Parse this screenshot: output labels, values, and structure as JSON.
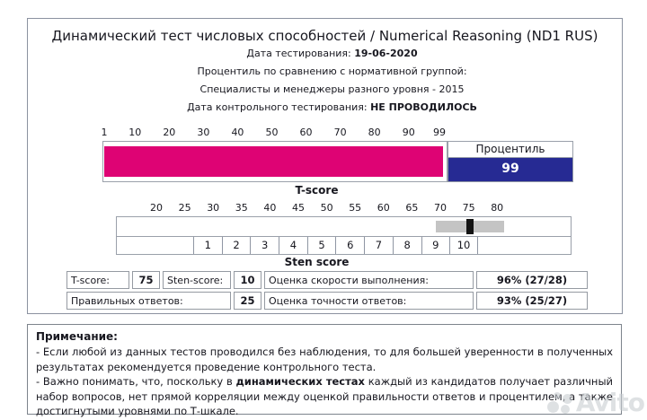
{
  "title": "Динамический тест числовых способностей / Numerical Reasoning (ND1 RUS)",
  "meta": {
    "test_date_label": "Дата тестирования:",
    "test_date": "19-06-2020",
    "percentile_group_label": "Процентиль по сравнению с нормативной группой:",
    "norm_group": "Специалисты и менеджеры разного уровня - 2015",
    "control_date_label": "Дата контрольного тестирования:",
    "control_date": "НЕ ПРОВОДИЛОСЬ"
  },
  "percentile_chart": {
    "ticks": [
      1,
      10,
      20,
      30,
      40,
      50,
      60,
      70,
      80,
      90,
      99
    ],
    "label": "Процентиль",
    "value": 99,
    "bar_color": "#de0374",
    "value_bg_color": "#262a93"
  },
  "tscore_chart": {
    "title": "T-score",
    "ticks": [
      20,
      25,
      30,
      35,
      40,
      45,
      50,
      55,
      60,
      65,
      70,
      75,
      80
    ],
    "value": 75,
    "ci_low": 69,
    "ci_high": 81,
    "band_color": "#c4c4c4",
    "marker_color": "#141414",
    "sten_cells": [
      "1",
      "2",
      "3",
      "4",
      "5",
      "6",
      "7",
      "8",
      "9",
      "10"
    ],
    "sten_label": "Sten score",
    "sten_value": 10
  },
  "results": {
    "tscore_label": "T-score:",
    "tscore_value": "75",
    "sten_label": "Sten-score:",
    "sten_value": "10",
    "speed_label": "Оценка скорости выполнения:",
    "speed_value": "96% (27/28)",
    "correct_label": "Правильных ответов:",
    "correct_value": "25",
    "accuracy_label": "Оценка точности ответов:",
    "accuracy_value": "93% (25/27)"
  },
  "note": {
    "title": "Примечание:",
    "line1": "- Если любой из данных тестов проводился без наблюдения, то для большей уверенности в полученных результатах рекомендуется проведение контрольного теста.",
    "line2_pre": "- Важно понимать, что, поскольку в ",
    "line2_bold": "динамических тестах",
    "line2_post": " каждый из кандидатов получает различный набор вопросов, нет прямой корреляции между оценкой правильности ответов и процентилем, а также достигнутыми уровнями по Т-шкале."
  },
  "watermark": "Avito",
  "chart_data": [
    {
      "type": "bar",
      "title": "Процентиль",
      "xlabel": "percentile",
      "x_ticks": [
        1,
        10,
        20,
        30,
        40,
        50,
        60,
        70,
        80,
        90,
        99
      ],
      "xlim": [
        1,
        99
      ],
      "values": [
        99
      ],
      "categories": [
        "Процентиль"
      ],
      "bar_color": "#de0374"
    },
    {
      "type": "scatter",
      "title": "T-score",
      "xlabel": "T-score",
      "x_ticks": [
        20,
        25,
        30,
        35,
        40,
        45,
        50,
        55,
        60,
        65,
        70,
        75,
        80
      ],
      "xlim": [
        16,
        85
      ],
      "x": [
        75
      ],
      "confidence_interval": [
        69,
        81
      ],
      "sten_scale": [
        1,
        2,
        3,
        4,
        5,
        6,
        7,
        8,
        9,
        10
      ],
      "sten_value": 10
    }
  ]
}
